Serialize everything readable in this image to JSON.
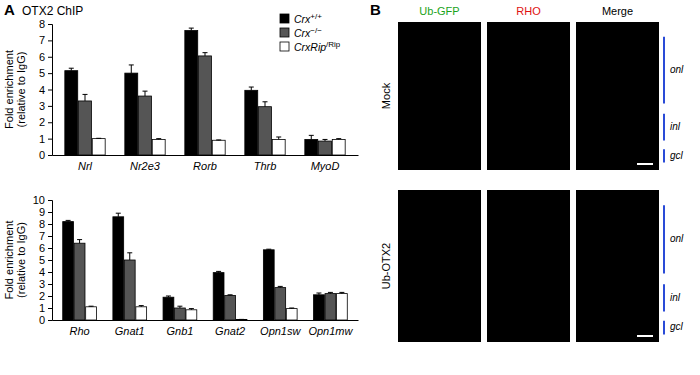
{
  "panel_labels": [
    "A",
    "B"
  ],
  "chart_data": [
    {
      "type": "bar",
      "title": "OTX2 ChIP",
      "ylabel": [
        "Fold enrichment",
        "(relative to IgG)"
      ],
      "categories": [
        "Nrl",
        "Nr2e3",
        "Rorb",
        "Thrb",
        "MyoD"
      ],
      "series": [
        {
          "name": "Crx+/+",
          "color": "#000000",
          "values": [
            5.15,
            5.0,
            7.6,
            3.95,
            0.95
          ],
          "errors": [
            0.15,
            0.5,
            0.15,
            0.2,
            0.25
          ]
        },
        {
          "name": "Crx−/−",
          "color": "#555555",
          "values": [
            3.3,
            3.6,
            6.05,
            2.95,
            0.85
          ],
          "errors": [
            0.4,
            0.3,
            0.2,
            0.3,
            0.1
          ]
        },
        {
          "name": "CrxRip/Rip",
          "color": "#ffffff",
          "values": [
            1.0,
            0.95,
            0.9,
            0.95,
            0.95
          ],
          "errors": [
            0.02,
            0.05,
            0.02,
            0.15,
            0.05
          ]
        }
      ],
      "ylim": [
        0,
        8
      ],
      "yticks": [
        0,
        1,
        2,
        3,
        4,
        5,
        6,
        7,
        8
      ],
      "legend": "top-right"
    },
    {
      "type": "bar",
      "ylabel": [
        "Fold enrichment",
        "(relative to IgG)"
      ],
      "categories": [
        "Rho",
        "Gnat1",
        "Gnb1",
        "Gnat2",
        "Opn1sw",
        "Opn1mw"
      ],
      "series": [
        {
          "color": "#000000",
          "values": [
            8.2,
            8.6,
            1.9,
            3.95,
            5.85,
            2.1
          ],
          "errors": [
            0.1,
            0.3,
            0.1,
            0.1,
            0.05,
            0.15
          ]
        },
        {
          "color": "#555555",
          "values": [
            6.4,
            5.0,
            1.0,
            2.05,
            2.7,
            2.2
          ],
          "errors": [
            0.3,
            0.6,
            0.15,
            0.05,
            0.1,
            0.1
          ]
        },
        {
          "color": "#ffffff",
          "values": [
            1.1,
            1.1,
            0.85,
            0.05,
            0.95,
            2.2
          ],
          "errors": [
            0.05,
            0.1,
            0.1,
            0.0,
            0.05,
            0.1
          ]
        }
      ],
      "ylim": [
        0,
        10
      ],
      "yticks": [
        0,
        1,
        2,
        3,
        4,
        5,
        6,
        7,
        8,
        9,
        10
      ]
    }
  ],
  "micrograph": {
    "columns": [
      {
        "label": "Ub-GFP",
        "color": "#1aa31a"
      },
      {
        "label": "RHO",
        "color": "#e01010"
      },
      {
        "label": "Merge",
        "color": "#000000"
      }
    ],
    "rows": [
      "Mock",
      "Ub-OTX2"
    ],
    "layers": [
      "onl",
      "inl",
      "gcl"
    ]
  }
}
